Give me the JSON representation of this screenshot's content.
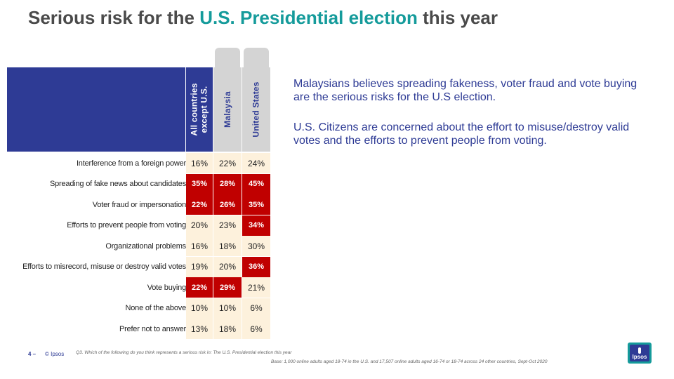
{
  "title": {
    "prefix": "Serious risk for the ",
    "highlight": "U.S. Presidential election",
    "suffix": " this year"
  },
  "columns": [
    "All countries except U.S.",
    "Malaysia",
    "United States"
  ],
  "column_lines": {
    "c0_line1": "All countries",
    "c0_line2": "except U.S."
  },
  "rows": [
    {
      "label": "Interference from a foreign power",
      "values": [
        "16%",
        "22%",
        "24%"
      ],
      "highlight": [
        false,
        false,
        false
      ]
    },
    {
      "label": "Spreading of fake news about candidates",
      "values": [
        "35%",
        "28%",
        "45%"
      ],
      "highlight": [
        true,
        true,
        true
      ]
    },
    {
      "label": "Voter fraud or impersonation",
      "values": [
        "22%",
        "26%",
        "35%"
      ],
      "highlight": [
        true,
        true,
        true
      ]
    },
    {
      "label": "Efforts to prevent people from voting",
      "values": [
        "20%",
        "23%",
        "34%"
      ],
      "highlight": [
        false,
        false,
        true
      ]
    },
    {
      "label": "Organizational problems",
      "values": [
        "16%",
        "18%",
        "30%"
      ],
      "highlight": [
        false,
        false,
        false
      ]
    },
    {
      "label": "Efforts to misrecord, misuse or destroy valid votes",
      "values": [
        "19%",
        "20%",
        "36%"
      ],
      "highlight": [
        false,
        false,
        true
      ]
    },
    {
      "label": "Vote buying",
      "values": [
        "22%",
        "29%",
        "21%"
      ],
      "highlight": [
        true,
        true,
        false
      ]
    },
    {
      "label": "None of the above",
      "values": [
        "10%",
        "10%",
        "6%"
      ],
      "highlight": [
        false,
        false,
        false
      ]
    },
    {
      "label": "Prefer not to answer",
      "values": [
        "13%",
        "18%",
        "6%"
      ],
      "highlight": [
        false,
        false,
        false
      ]
    }
  ],
  "notes": [
    "Malaysians believes spreading fakeness, voter fraud and vote buying are the serious risks for the U.S election.",
    "U.S. Citizens are concerned about the effort to misuse/destroy valid votes and the efforts to prevent people from voting."
  ],
  "footer": {
    "page_number": "4 –",
    "copyright": "© Ipsos",
    "question": "Q3. Which of the following do you think represents a serious risk in: The U.S. Presidential election this year",
    "base": "Base: 1,000 online adults aged 18-74 in the U.S. and 17,507 online adults aged 16-74 or 18-74 across 24 other countries, Sept-Oct 2020"
  },
  "logo": {
    "text": "Ipsos"
  },
  "colors": {
    "accent_teal": "#159b9b",
    "header_blue": "#2e3b95",
    "highlight_red": "#c00000",
    "cell_cream": "#fdf1dc",
    "tab_grey": "#d4d4d4"
  }
}
